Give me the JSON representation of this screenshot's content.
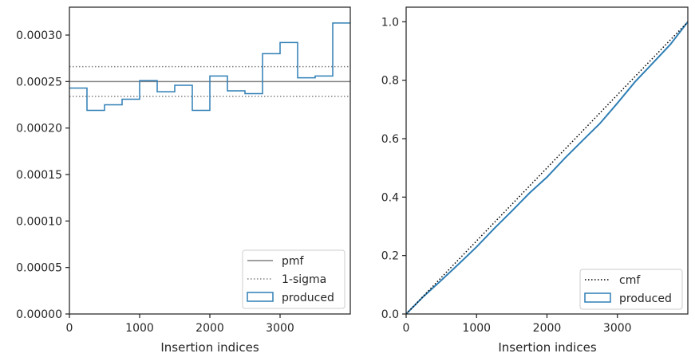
{
  "colors": {
    "produced": "#2f7fb5",
    "pmf": "#808080",
    "sigma": "#808080",
    "cmf": "#000000",
    "axes": "#262626"
  },
  "chart_data": [
    {
      "type": "step-histogram",
      "xlabel": "Insertion indices",
      "ylabel": "",
      "xlim": [
        0,
        4000
      ],
      "ylim": [
        0,
        0.00033
      ],
      "xticks": [
        0,
        1000,
        2000,
        3000
      ],
      "xtick_labels": [
        "0",
        "1000",
        "2000",
        "3000"
      ],
      "yticks": [
        0,
        5e-05,
        0.0001,
        0.00015,
        0.0002,
        0.00025,
        0.0003
      ],
      "ytick_labels": [
        "0.00000",
        "0.00005",
        "0.00010",
        "0.00015",
        "0.00020",
        "0.00025",
        "0.00030"
      ],
      "bin_edges": [
        0,
        250,
        500,
        750,
        1000,
        1250,
        1500,
        1750,
        2000,
        2250,
        2500,
        2750,
        3000,
        3250,
        3500,
        3750,
        4000
      ],
      "series": [
        {
          "name": "produced",
          "values": [
            0.000243,
            0.000219,
            0.000225,
            0.000231,
            0.000251,
            0.000239,
            0.000246,
            0.000219,
            0.000256,
            0.00024,
            0.000237,
            0.00028,
            0.000292,
            0.000254,
            0.000256,
            0.000313
          ]
        }
      ],
      "reference_lines": [
        {
          "name": "pmf",
          "y": 0.00025,
          "style": "solid"
        },
        {
          "name": "1-sigma",
          "y": [
            0.000266,
            0.000234
          ],
          "style": "dotted"
        }
      ],
      "legend": {
        "placement": "lower right",
        "entries": [
          "pmf",
          "1-sigma",
          "produced"
        ]
      },
      "grid": false
    },
    {
      "type": "line",
      "xlabel": "Insertion indices",
      "ylabel": "",
      "xlim": [
        0,
        4000
      ],
      "ylim": [
        0,
        1.05
      ],
      "xticks": [
        0,
        1000,
        2000,
        3000
      ],
      "xtick_labels": [
        "0",
        "1000",
        "2000",
        "3000"
      ],
      "yticks": [
        0,
        0.2,
        0.4,
        0.6,
        0.8,
        1.0
      ],
      "ytick_labels": [
        "0.0",
        "0.2",
        "0.4",
        "0.6",
        "0.8",
        "1.0"
      ],
      "series": [
        {
          "name": "cmf",
          "style": "dotted",
          "x": [
            0,
            4000
          ],
          "y": [
            0,
            1.0
          ]
        },
        {
          "name": "produced",
          "style": "solid",
          "x": [
            0,
            250,
            500,
            750,
            1000,
            1250,
            1500,
            1750,
            2000,
            2250,
            2500,
            2750,
            3000,
            3250,
            3500,
            3750,
            4000
          ],
          "y": [
            0,
            0.0608,
            0.1155,
            0.1718,
            0.2295,
            0.2923,
            0.352,
            0.4135,
            0.4683,
            0.5323,
            0.5923,
            0.6515,
            0.7215,
            0.7945,
            0.858,
            0.922,
            1.0
          ]
        }
      ],
      "legend": {
        "placement": "lower right",
        "entries": [
          "cmf",
          "produced"
        ]
      },
      "grid": false
    }
  ]
}
